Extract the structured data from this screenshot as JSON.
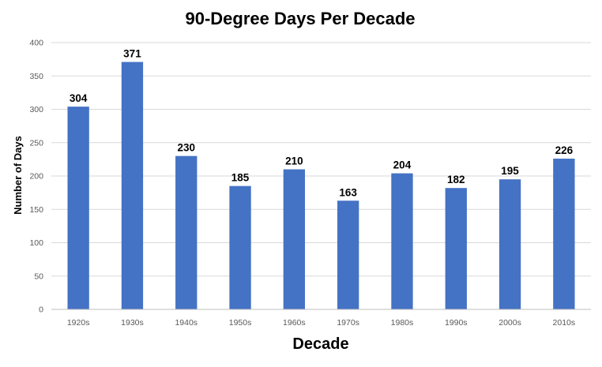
{
  "chart_data": {
    "type": "bar",
    "title": "90-Degree Days Per Decade",
    "xlabel": "Decade",
    "ylabel": "Number of Days",
    "categories": [
      "1920s",
      "1930s",
      "1940s",
      "1950s",
      "1960s",
      "1970s",
      "1980s",
      "1990s",
      "2000s",
      "2010s"
    ],
    "values": [
      304,
      371,
      230,
      185,
      210,
      163,
      204,
      182,
      195,
      226
    ],
    "ylim": [
      0,
      400
    ],
    "yticks": [
      0,
      50,
      100,
      150,
      200,
      250,
      300,
      350,
      400
    ],
    "grid": true,
    "legend": "none",
    "bar_color": "#4472c4",
    "data_labels": true
  }
}
